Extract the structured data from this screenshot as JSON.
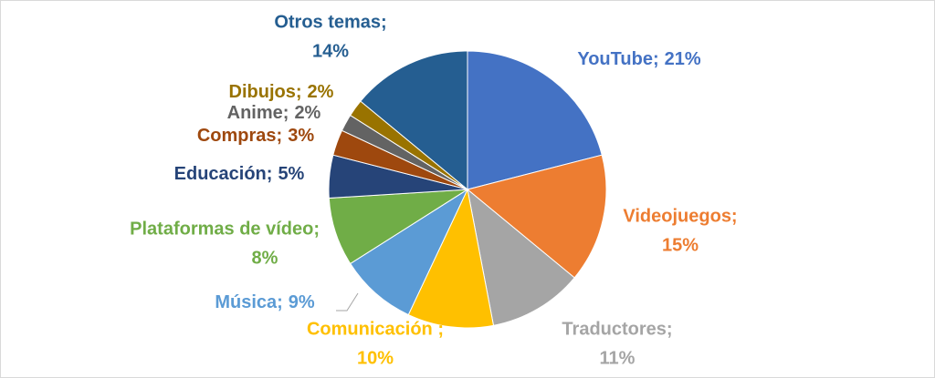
{
  "chart_data": {
    "type": "pie",
    "categories": [
      "YouTube;",
      "Videojuegos;",
      "Traductores;",
      "Comunicación ;",
      "Música;",
      "Plataformas de vídeo;",
      "Educación;",
      "Compras;",
      "Anime;",
      "Dibujos;",
      "Otros temas;"
    ],
    "values": [
      21,
      15,
      11,
      10,
      9,
      8,
      5,
      3,
      2,
      2,
      14
    ],
    "value_labels": [
      "21%",
      "15%",
      "11%",
      "10%",
      "9%",
      "8%",
      "5%",
      "3%",
      "2%",
      "2%",
      "14%"
    ],
    "colors": [
      "#4472c4",
      "#ed7d31",
      "#a5a5a5",
      "#ffc000",
      "#5b9bd5",
      "#70ad47",
      "#264478",
      "#9e480e",
      "#636363",
      "#997300",
      "#255e91"
    ]
  }
}
